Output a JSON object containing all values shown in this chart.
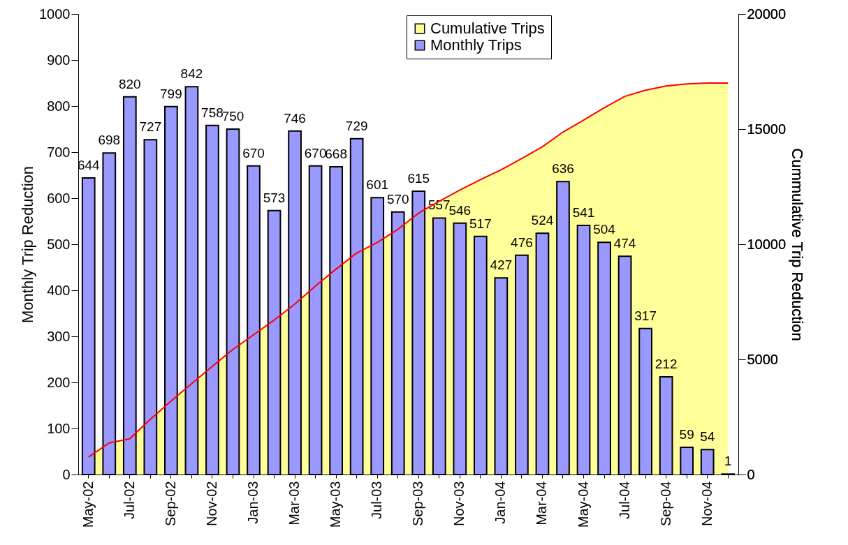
{
  "chart_data": {
    "type": "bar",
    "ylabel": "Monthly Trip Reduction",
    "y2label": "Cummulative Trip Reduction",
    "categories": [
      "May-02",
      null,
      "Jul-02",
      null,
      "Sep-02",
      null,
      "Nov-02",
      null,
      "Jan-03",
      null,
      "Mar-03",
      null,
      "May-03",
      null,
      "Jul-03",
      null,
      "Sep-03",
      null,
      "Nov-03",
      null,
      "Jan-04",
      null,
      "Mar-04",
      null,
      "May-04",
      null,
      "Jul-04",
      null,
      "Sep-04",
      null,
      "Nov-04",
      null
    ],
    "series": [
      {
        "name": "Cumulative Trips",
        "type": "area",
        "axis": "y2",
        "color": "#ffff99",
        "values": [
          760,
          1370,
          1550,
          2400,
          3190,
          3950,
          4700,
          5430,
          6070,
          6710,
          7400,
          8190,
          8920,
          9620,
          10080,
          10650,
          11350,
          11870,
          12350,
          12810,
          13230,
          13720,
          14230,
          14870,
          15390,
          15930,
          16420,
          16690,
          16870,
          16960,
          17000,
          17000
        ]
      },
      {
        "name": "Monthly Trips",
        "color": "#9999ff",
        "values": [
          644,
          698,
          820,
          727,
          799,
          842,
          758,
          750,
          670,
          573,
          746,
          670,
          668,
          729,
          601,
          570,
          615,
          557,
          546,
          517,
          427,
          476,
          524,
          636,
          541,
          504,
          474,
          317,
          212,
          59,
          54,
          1
        ],
        "value_labels": [
          "644",
          "698",
          "820",
          "727",
          "799",
          "842",
          "758",
          "750",
          "670",
          "573",
          "746",
          "670",
          "668",
          "729",
          "601",
          "570",
          "615",
          "557",
          "546",
          "517",
          "427",
          "476",
          "524",
          "636",
          "541",
          "504",
          "474",
          "317",
          "212",
          "59",
          "54",
          "1"
        ]
      }
    ],
    "ylim": [
      0,
      1000
    ],
    "yticks": [
      0,
      100,
      200,
      300,
      400,
      500,
      600,
      700,
      800,
      900,
      1000
    ],
    "y2lim": [
      0,
      20000
    ],
    "y2ticks": [
      0,
      5000,
      10000,
      15000,
      20000
    ],
    "legend": "top",
    "grid": false
  }
}
